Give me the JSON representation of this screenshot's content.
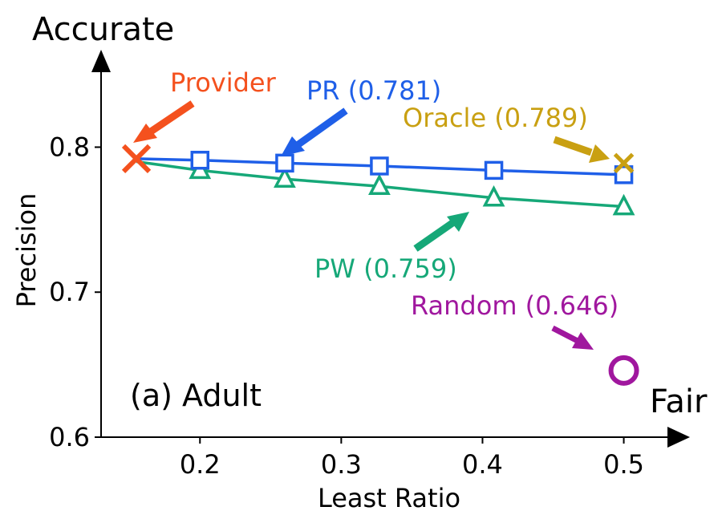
{
  "chart_data": {
    "type": "line",
    "subplot_label": "(a) Adult",
    "xlabel": "Least Ratio",
    "ylabel": "Precision",
    "y_axis_arrow_label": "Accurate",
    "x_axis_arrow_label": "Fair",
    "xlim": [
      0.13,
      0.54
    ],
    "ylim": [
      0.6,
      0.86
    ],
    "xticks": [
      0.2,
      0.3,
      0.4,
      0.5
    ],
    "xtick_labels": [
      "0.2",
      "0.3",
      "0.4",
      "0.5"
    ],
    "yticks": [
      0.6,
      0.7,
      0.8
    ],
    "ytick_labels": [
      "0.6",
      "0.7",
      "0.8"
    ],
    "colors": {
      "pr": "#1f5fe8",
      "pw": "#16a878",
      "provider": "#f4511e",
      "oracle": "#c9a012",
      "random": "#a0179e"
    },
    "series": [
      {
        "name": "PR",
        "marker": "square",
        "x": [
          0.155,
          0.2,
          0.26,
          0.327,
          0.408,
          0.5
        ],
        "y": [
          0.792,
          0.791,
          0.789,
          0.787,
          0.784,
          0.781
        ]
      },
      {
        "name": "PW",
        "marker": "triangle",
        "x": [
          0.155,
          0.2,
          0.26,
          0.327,
          0.408,
          0.5
        ],
        "y": [
          0.79,
          0.784,
          0.778,
          0.773,
          0.765,
          0.759
        ]
      }
    ],
    "points": [
      {
        "name": "Provider",
        "marker": "x",
        "x": 0.155,
        "y": 0.792
      },
      {
        "name": "Oracle",
        "marker": "x",
        "x": 0.5,
        "y": 0.789
      },
      {
        "name": "Random",
        "marker": "circle",
        "x": 0.5,
        "y": 0.646
      }
    ],
    "annotations": [
      {
        "key": "provider",
        "text": "Provider"
      },
      {
        "key": "pr",
        "text": "PR (0.781)"
      },
      {
        "key": "oracle",
        "text": "Oracle (0.789)"
      },
      {
        "key": "pw",
        "text": "PW (0.759)"
      },
      {
        "key": "random",
        "text": "Random (0.646)"
      }
    ]
  }
}
